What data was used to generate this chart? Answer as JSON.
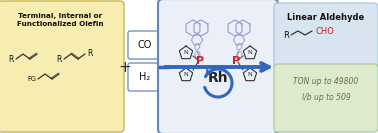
{
  "bg_color": "#ffffff",
  "left_box_color": "#f7edb0",
  "left_box_edge": "#c8b84a",
  "co_h2_box_color": "#ffffff",
  "co_h2_box_edge": "#6688bb",
  "center_box_color": "#eaeff8",
  "center_box_edge": "#6688bb",
  "right_top_box_color": "#d8e5f0",
  "right_top_box_edge": "#b0c4d8",
  "right_bot_box_color": "#ddeacc",
  "right_bot_box_edge": "#b0c8a0",
  "title_text": "Terminal, Internal or\nFunctionalized Olefin",
  "co_text": "CO",
  "h2_text": "H₂",
  "linear_aldehyde_text": "Linear Aldehyde",
  "ton_text": "TON up to 49800",
  "lb_text": "l/b up to 509",
  "arrow_color": "#3366bb",
  "rh_color": "#222222",
  "p_color": "#cc2222",
  "binaph_color": "#9999cc",
  "o_color": "#8899bb",
  "cho_color": "#cc2222",
  "n_color": "#333333",
  "chain_color": "#333333"
}
